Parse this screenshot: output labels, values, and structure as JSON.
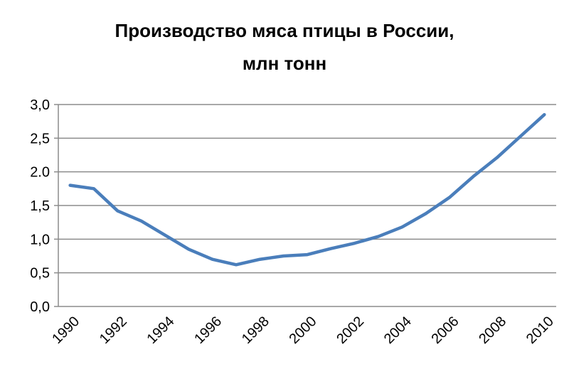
{
  "chart_data": {
    "type": "line",
    "title": [
      "Производство мяса птицы в России,",
      "млн тонн"
    ],
    "categories": [
      "1990",
      null,
      "1992",
      null,
      "1994",
      null,
      "1996",
      null,
      "1998",
      null,
      "2000",
      null,
      "2002",
      null,
      "2004",
      null,
      "2006",
      null,
      "2008",
      null,
      "2010"
    ],
    "series": [
      {
        "color": "#4a7ebb",
        "values": [
          1.8,
          1.75,
          1.42,
          1.27,
          1.06,
          0.85,
          0.7,
          0.62,
          0.7,
          0.75,
          0.77,
          0.86,
          0.94,
          1.04,
          1.18,
          1.38,
          1.62,
          1.93,
          2.21,
          2.53,
          2.85
        ]
      }
    ],
    "ylim": [
      0,
      3
    ],
    "yticks": [
      {
        "value": 0,
        "label": "0,0"
      },
      {
        "value": 0.5,
        "label": "0,5"
      },
      {
        "value": 1,
        "label": "1,0"
      },
      {
        "value": 1.5,
        "label": "1,5"
      },
      {
        "value": 2,
        "label": "2.0"
      },
      {
        "value": 2.5,
        "label": "2,5"
      },
      {
        "value": 3,
        "label": "3,0"
      }
    ],
    "grid": true
  }
}
